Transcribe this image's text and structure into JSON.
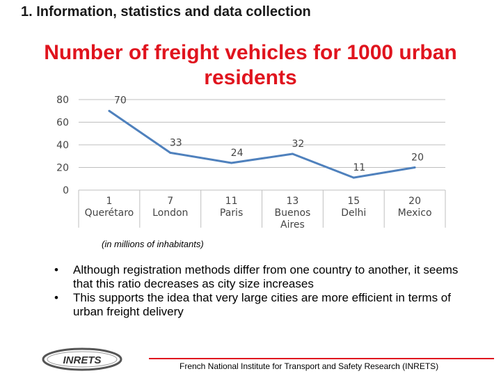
{
  "slide": {
    "section_heading": "1. Information, statistics and data collection",
    "title": "Number of freight vehicles for 1000 urban residents",
    "note": "(in millions of inhabitants)",
    "bullets": [
      "Although registration methods differ from one country to another, it seems that this ratio decreases as city size increases",
      "This supports the idea that very large cities are more efficient in terms of urban freight delivery"
    ],
    "footer": "French National Institute for Transport and Safety Research (INRETS)",
    "logo_text": "INRETS",
    "colors": {
      "title": "#e0141e",
      "line": "#4f81bd",
      "grid": "#bfbfbf",
      "footer_rule": "#e0141e"
    }
  },
  "chart_data": {
    "type": "line",
    "categories": [
      [
        "1",
        "Querétaro"
      ],
      [
        "7",
        "London"
      ],
      [
        "11",
        "Paris"
      ],
      [
        "13",
        "Buenos",
        "Aires"
      ],
      [
        "15",
        "Delhi"
      ],
      [
        "20",
        "Mexico"
      ]
    ],
    "values": [
      70,
      33,
      24,
      32,
      11,
      20
    ],
    "data_labels": [
      "70",
      "33",
      "24",
      "32",
      "11",
      "20"
    ],
    "ylim": [
      0,
      80
    ],
    "yticks": [
      0,
      20,
      40,
      60,
      80
    ],
    "grid": true,
    "legend": "none"
  }
}
